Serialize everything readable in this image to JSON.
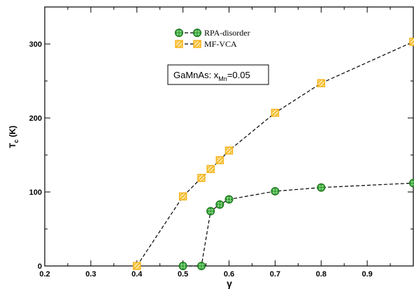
{
  "chart_data": {
    "type": "line",
    "xlabel": "γ",
    "ylabel_main": "T",
    "ylabel_sub": "c",
    "ylabel_unit": " (K)",
    "xlim": [
      0.2,
      1.0
    ],
    "ylim": [
      0,
      350
    ],
    "x_ticks": [
      0.2,
      0.3,
      0.4,
      0.5,
      0.6,
      0.7,
      0.8,
      0.9
    ],
    "x_tick_labels": [
      "0.2",
      "0.3",
      "0.4",
      "0.5",
      "0.6",
      "0.7",
      "0.8",
      "0.9"
    ],
    "y_ticks": [
      0,
      100,
      200,
      300
    ],
    "y_tick_labels": [
      "0",
      "100",
      "200",
      "300"
    ],
    "grid": false,
    "legend_position": "top-center",
    "annotation": {
      "prefix": "GaMnAs: x",
      "sub": "Mn",
      "suffix": "=0.05"
    },
    "series": [
      {
        "name": "RPA-disorder",
        "color": "#2ca02c",
        "marker": "circle",
        "x": [
          0.5,
          0.54,
          0.56,
          0.58,
          0.6,
          0.7,
          0.8,
          1.0
        ],
        "y": [
          0,
          0,
          74,
          83,
          90,
          101,
          106,
          112
        ]
      },
      {
        "name": "MF-VCA",
        "color": "#f5b31a",
        "marker": "square",
        "x": [
          0.4,
          0.5,
          0.54,
          0.56,
          0.58,
          0.6,
          0.7,
          0.8,
          1.0
        ],
        "y": [
          0,
          94,
          119,
          131,
          143,
          156,
          207,
          247,
          303
        ]
      }
    ]
  }
}
